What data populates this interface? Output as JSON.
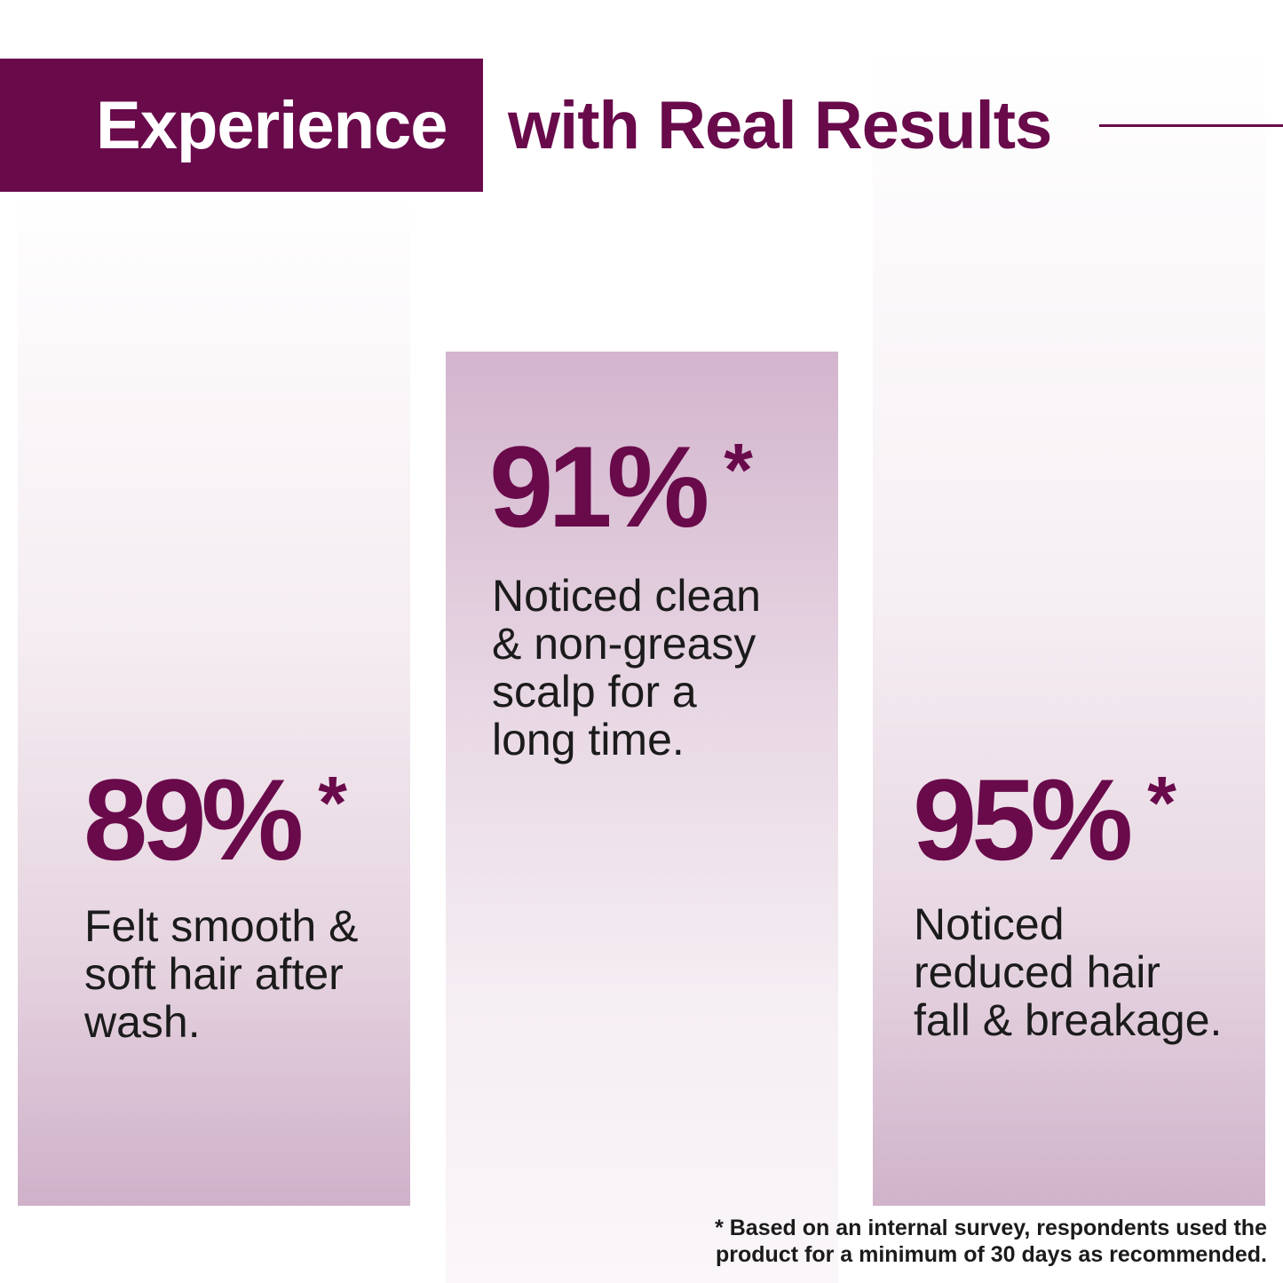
{
  "header": {
    "highlight": "Experience",
    "rest": "with Real Results"
  },
  "stats": [
    {
      "value": "89%",
      "mark": "*",
      "description": "Felt smooth &\nsoft hair after\nwash."
    },
    {
      "value": "91%",
      "mark": "*",
      "description": "Noticed clean\n& non-greasy\nscalp for a\nlong time."
    },
    {
      "value": "95%",
      "mark": "*",
      "description": "Noticed\nreduced hair\nfall & breakage."
    }
  ],
  "footnote": "* Based on an internal survey, respondents used the\nproduct for a minimum of 30 days as recommended.",
  "colors": {
    "brand": "#690a4b",
    "text": "#1b1b1b"
  }
}
